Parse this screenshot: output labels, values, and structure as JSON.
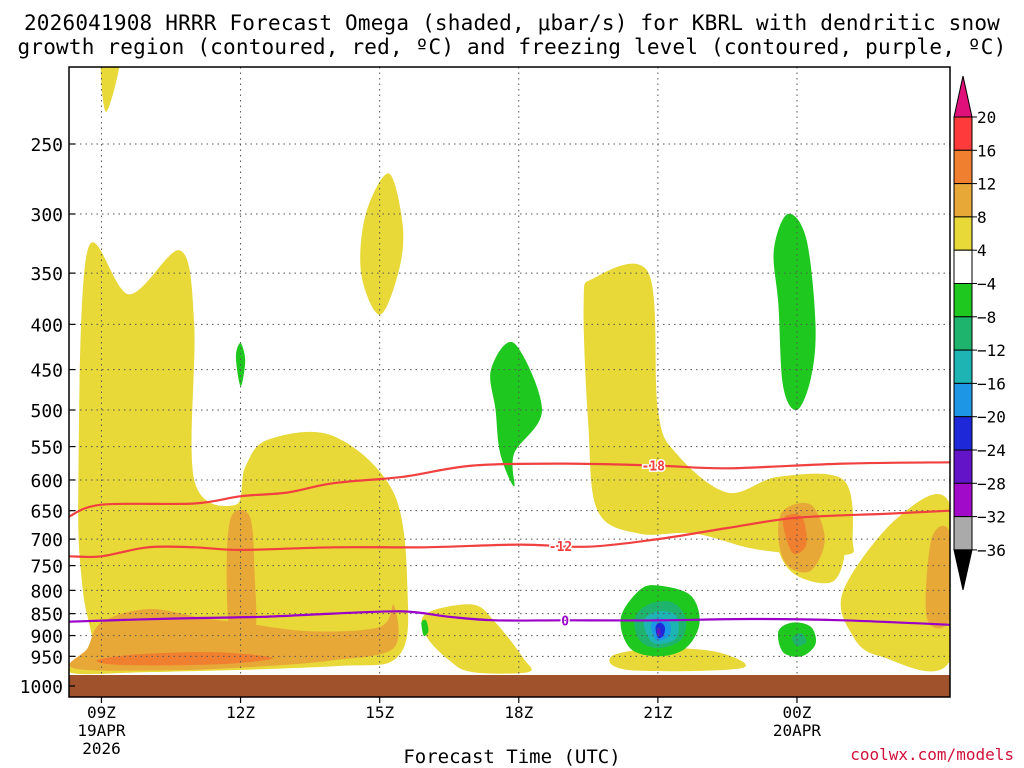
{
  "chart_data": {
    "type": "contour-timeheight",
    "title_line1": "2026041908 HRRR Forecast Omega (shaded, μbar/s) for KBRL with dendritic snow",
    "title_line2": "growth region (contoured, red, ºC) and freezing level (contoured, purple, ºC)",
    "xlabel": "Forecast Time (UTC)",
    "x_range_hours": [
      -0.7,
      18.3
    ],
    "y_range_hpa": [
      1000,
      200
    ],
    "x_ticks": [
      {
        "h": 0,
        "label": "09Z",
        "sub1": "19APR",
        "sub2": "2026"
      },
      {
        "h": 3,
        "label": "12Z",
        "sub1": "",
        "sub2": ""
      },
      {
        "h": 6,
        "label": "15Z",
        "sub1": "",
        "sub2": ""
      },
      {
        "h": 9,
        "label": "18Z",
        "sub1": "",
        "sub2": ""
      },
      {
        "h": 12,
        "label": "21Z",
        "sub1": "",
        "sub2": ""
      },
      {
        "h": 15,
        "label": "00Z",
        "sub1": "20APR",
        "sub2": ""
      }
    ],
    "y_ticks": [
      250,
      300,
      350,
      400,
      450,
      500,
      550,
      600,
      650,
      700,
      750,
      800,
      850,
      900,
      950,
      1000
    ],
    "colorbar": {
      "labels": [
        "20",
        "16",
        "12",
        "8",
        "4",
        "−4",
        "−8",
        "−12",
        "−16",
        "−20",
        "−24",
        "−28",
        "−32",
        "−36"
      ],
      "colors": [
        "#ff3a3a",
        "#f07f2f",
        "#e8a838",
        "#e8d838",
        "#ffffff",
        "#1ec81e",
        "#1eb46e",
        "#1eb4b4",
        "#1e96e6",
        "#1e28d8",
        "#6414c8",
        "#a00ac8",
        "#aaaaaa"
      ],
      "top_arrow_color": "#e0107a",
      "bottom_arrow_color": "#000000"
    },
    "shaded_regions": [
      {
        "level": 4,
        "color": "#e8d838",
        "pts": [
          [
            -0.7,
            990
          ],
          [
            -0.2,
            930
          ],
          [
            -0.4,
            800
          ],
          [
            -0.5,
            620
          ],
          [
            -0.3,
            330
          ],
          [
            0.6,
            370
          ],
          [
            1.7,
            330
          ],
          [
            2.0,
            400
          ],
          [
            2.0,
            600
          ],
          [
            2.9,
            640
          ],
          [
            3.1,
            580
          ],
          [
            3.6,
            540
          ],
          [
            5.0,
            535
          ],
          [
            6.3,
            620
          ],
          [
            6.6,
            800
          ],
          [
            6.4,
            950
          ],
          [
            5.0,
            975
          ],
          [
            1.0,
            990
          ]
        ]
      },
      {
        "level": 4,
        "color": "#e8d838",
        "pts": [
          [
            5.2,
            700
          ],
          [
            5.4,
            760
          ],
          [
            5.9,
            820
          ],
          [
            6.3,
            820
          ],
          [
            6.5,
            760
          ],
          [
            6.4,
            700
          ],
          [
            5.9,
            680
          ]
        ]
      },
      {
        "level": 4,
        "color": "#e8d838",
        "pts": [
          [
            0.0,
            200
          ],
          [
            0.4,
            200
          ],
          [
            0.1,
            230
          ]
        ]
      },
      {
        "level": 4,
        "color": "#e8d838",
        "pts": [
          [
            5.7,
            300
          ],
          [
            6.2,
            270
          ],
          [
            6.5,
            310
          ],
          [
            6.4,
            350
          ],
          [
            6.0,
            390
          ],
          [
            5.6,
            350
          ]
        ]
      },
      {
        "level": 4,
        "color": "#e8d838",
        "pts": [
          [
            7.0,
            850
          ],
          [
            8.0,
            830
          ],
          [
            8.5,
            870
          ],
          [
            9.1,
            955
          ],
          [
            9.2,
            990
          ],
          [
            8.0,
            990
          ],
          [
            7.5,
            960
          ],
          [
            7.0,
            900
          ]
        ]
      },
      {
        "level": 4,
        "color": "#e8d838",
        "pts": [
          [
            10.4,
            380
          ],
          [
            10.6,
            355
          ],
          [
            11.8,
            350
          ],
          [
            12.0,
            500
          ],
          [
            12.4,
            560
          ],
          [
            13.5,
            620
          ],
          [
            14.6,
            595
          ],
          [
            16.0,
            600
          ],
          [
            16.2,
            700
          ],
          [
            16.0,
            730
          ],
          [
            14.2,
            720
          ],
          [
            12.8,
            690
          ],
          [
            11.6,
            690
          ],
          [
            10.7,
            650
          ],
          [
            10.5,
            520
          ]
        ]
      },
      {
        "level": 4,
        "color": "#e8d838",
        "pts": [
          [
            14.5,
            640
          ],
          [
            15.3,
            630
          ],
          [
            16.0,
            700
          ],
          [
            15.8,
            780
          ],
          [
            15.0,
            770
          ],
          [
            14.6,
            720
          ]
        ]
      },
      {
        "level": 4,
        "color": "#e8d838",
        "pts": [
          [
            16.0,
            800
          ],
          [
            17.2,
            660
          ],
          [
            18.3,
            640
          ],
          [
            18.3,
            960
          ],
          [
            16.8,
            950
          ],
          [
            16.2,
            900
          ]
        ]
      },
      {
        "level": 4,
        "color": "#e8d838",
        "pts": [
          [
            11.0,
            950
          ],
          [
            12.0,
            930
          ],
          [
            13.3,
            940
          ],
          [
            13.8,
            980
          ],
          [
            11.4,
            985
          ]
        ]
      },
      {
        "level": 8,
        "color": "#e8a838",
        "pts": [
          [
            -0.6,
            980
          ],
          [
            -0.3,
            930
          ],
          [
            0.0,
            870
          ],
          [
            1.0,
            840
          ],
          [
            2.2,
            860
          ],
          [
            3.0,
            870
          ],
          [
            4.5,
            890
          ],
          [
            6.0,
            880
          ],
          [
            6.3,
            830
          ],
          [
            6.3,
            930
          ],
          [
            5.0,
            960
          ],
          [
            3.5,
            975
          ],
          [
            1.5,
            985
          ]
        ]
      },
      {
        "level": 8,
        "color": "#e8a838",
        "pts": [
          [
            2.8,
            660
          ],
          [
            3.2,
            660
          ],
          [
            3.3,
            760
          ],
          [
            3.3,
            900
          ],
          [
            2.8,
            900
          ],
          [
            2.7,
            760
          ]
        ]
      },
      {
        "level": 8,
        "color": "#e8a838",
        "pts": [
          [
            14.7,
            650
          ],
          [
            15.3,
            640
          ],
          [
            15.6,
            700
          ],
          [
            15.3,
            760
          ],
          [
            14.8,
            750
          ],
          [
            14.6,
            700
          ]
        ]
      },
      {
        "level": 8,
        "color": "#e8a838",
        "pts": [
          [
            17.9,
            700
          ],
          [
            18.3,
            690
          ],
          [
            18.3,
            860
          ],
          [
            17.8,
            860
          ]
        ]
      },
      {
        "level": 12,
        "color": "#f07f2f",
        "pts": [
          [
            -0.1,
            960
          ],
          [
            0.8,
            945
          ],
          [
            2.5,
            940
          ],
          [
            3.7,
            955
          ],
          [
            2.5,
            970
          ],
          [
            0.5,
            972
          ]
        ]
      },
      {
        "level": 12,
        "color": "#f07f2f",
        "pts": [
          [
            14.7,
            665
          ],
          [
            15.1,
            660
          ],
          [
            15.2,
            710
          ],
          [
            14.9,
            725
          ]
        ]
      },
      {
        "level": -4,
        "color": "#1ec81e",
        "pts": [
          [
            2.9,
            435
          ],
          [
            3.0,
            420
          ],
          [
            3.1,
            440
          ],
          [
            3.0,
            470
          ]
        ]
      },
      {
        "level": -4,
        "color": "#1ec81e",
        "pts": [
          [
            8.4,
            450
          ],
          [
            8.9,
            420
          ],
          [
            9.5,
            500
          ],
          [
            8.9,
            560
          ],
          [
            8.9,
            610
          ],
          [
            8.6,
            560
          ],
          [
            8.5,
            500
          ]
        ]
      },
      {
        "level": -4,
        "color": "#1ec81e",
        "pts": [
          [
            14.5,
            330
          ],
          [
            14.8,
            300
          ],
          [
            15.2,
            320
          ],
          [
            15.4,
            400
          ],
          [
            15.3,
            460
          ],
          [
            15.0,
            500
          ],
          [
            14.7,
            470
          ],
          [
            14.6,
            380
          ]
        ]
      },
      {
        "level": -4,
        "color": "#1ec81e",
        "pts": [
          [
            11.2,
            860
          ],
          [
            11.6,
            800
          ],
          [
            12.0,
            790
          ],
          [
            12.7,
            810
          ],
          [
            12.9,
            870
          ],
          [
            12.6,
            930
          ],
          [
            12.0,
            950
          ],
          [
            11.4,
            930
          ]
        ]
      },
      {
        "level": -4,
        "color": "#1ec81e",
        "pts": [
          [
            14.6,
            890
          ],
          [
            14.9,
            870
          ],
          [
            15.3,
            880
          ],
          [
            15.4,
            920
          ],
          [
            15.1,
            950
          ],
          [
            14.7,
            940
          ]
        ]
      },
      {
        "level": -4,
        "color": "#1ec81e",
        "pts": [
          [
            6.9,
            870
          ],
          [
            7.0,
            865
          ],
          [
            7.05,
            890
          ],
          [
            6.95,
            900
          ]
        ]
      },
      {
        "level": -8,
        "color": "#1eb46e",
        "pts": [
          [
            11.5,
            860
          ],
          [
            11.8,
            830
          ],
          [
            12.3,
            825
          ],
          [
            12.6,
            860
          ],
          [
            12.5,
            910
          ],
          [
            12.0,
            930
          ],
          [
            11.6,
            910
          ]
        ]
      },
      {
        "level": -12,
        "color": "#1eb4b4",
        "pts": [
          [
            11.7,
            865
          ],
          [
            12.0,
            845
          ],
          [
            12.4,
            855
          ],
          [
            12.4,
            905
          ],
          [
            12.0,
            920
          ],
          [
            11.8,
            905
          ]
        ]
      },
      {
        "level": -16,
        "color": "#1e96e6",
        "pts": [
          [
            11.85,
            875
          ],
          [
            12.0,
            860
          ],
          [
            12.25,
            870
          ],
          [
            12.25,
            900
          ],
          [
            12.0,
            912
          ],
          [
            11.9,
            898
          ]
        ]
      },
      {
        "level": -20,
        "color": "#1e28d8",
        "pts": [
          [
            11.95,
            880
          ],
          [
            12.05,
            870
          ],
          [
            12.15,
            880
          ],
          [
            12.12,
            900
          ],
          [
            12.0,
            905
          ]
        ]
      },
      {
        "level": -24,
        "color": "#6414c8",
        "pts": [
          [
            11.98,
            888
          ],
          [
            12.04,
            884
          ],
          [
            12.06,
            897
          ],
          [
            12.0,
            900
          ]
        ]
      },
      {
        "level": -8,
        "color": "#1eb46e",
        "pts": [
          [
            14.9,
            905
          ],
          [
            15.1,
            895
          ],
          [
            15.2,
            915
          ],
          [
            15.0,
            925
          ]
        ]
      }
    ],
    "contours": [
      {
        "name": "dgz-minus18",
        "value": "-18",
        "color": "#f04040",
        "label_at_h": 11.9,
        "pts": [
          [
            -0.7,
            660
          ],
          [
            0.0,
            640
          ],
          [
            2.0,
            638
          ],
          [
            3.0,
            626
          ],
          [
            4.0,
            620
          ],
          [
            5.0,
            605
          ],
          [
            6.5,
            595
          ],
          [
            8.0,
            578
          ],
          [
            10.0,
            575
          ],
          [
            12.0,
            578
          ],
          [
            13.5,
            582
          ],
          [
            16.0,
            575
          ],
          [
            18.3,
            573
          ]
        ]
      },
      {
        "name": "dgz-minus12",
        "value": "-12",
        "color": "#f04040",
        "label_at_h": 9.9,
        "pts": [
          [
            -0.7,
            732
          ],
          [
            0.0,
            732
          ],
          [
            1.0,
            715
          ],
          [
            2.0,
            715
          ],
          [
            3.0,
            720
          ],
          [
            5.0,
            715
          ],
          [
            7.0,
            715
          ],
          [
            9.0,
            710
          ],
          [
            10.5,
            714
          ],
          [
            12.0,
            700
          ],
          [
            13.5,
            680
          ],
          [
            15.0,
            662
          ],
          [
            17.0,
            655
          ],
          [
            18.3,
            650
          ]
        ]
      },
      {
        "name": "freezing-level",
        "value": "0",
        "color": "#9a00c8",
        "label_at_h": 10.0,
        "pts": [
          [
            -0.7,
            868
          ],
          [
            0.5,
            864
          ],
          [
            2.0,
            860
          ],
          [
            3.5,
            857
          ],
          [
            5.0,
            850
          ],
          [
            6.5,
            845
          ],
          [
            7.5,
            857
          ],
          [
            8.5,
            865
          ],
          [
            10.0,
            865
          ],
          [
            12.0,
            865
          ],
          [
            14.0,
            862
          ],
          [
            16.0,
            865
          ],
          [
            18.3,
            875
          ]
        ]
      }
    ]
  },
  "credit": "coolwx.com/models"
}
